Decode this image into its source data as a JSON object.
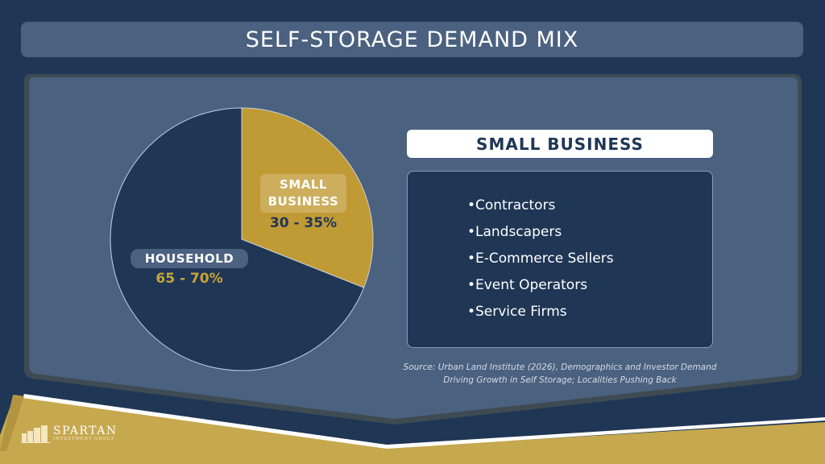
{
  "title": "SELF-STORAGE DEMAND MIX",
  "colors": {
    "navy": "#1f3655",
    "panel": "#4b6180",
    "gold": "#c09a35",
    "gold_band": "#c6a84e"
  },
  "chart_data": {
    "type": "pie",
    "start": "12 o'clock, clockwise",
    "slices": [
      {
        "name": "SMALL BUSINESS",
        "label": "30 - 35%",
        "value": 31,
        "color": "#c09a35"
      },
      {
        "name": "HOUSEHOLD",
        "label": "65 - 70%",
        "value": 69,
        "color": "#1f3655"
      }
    ]
  },
  "detail": {
    "heading": "SMALL BUSINESS",
    "items": [
      "Contractors",
      "Landscapers",
      "E-Commerce Sellers",
      "Event Operators",
      "Service Firms"
    ],
    "bullet": "•"
  },
  "source": {
    "line1": "Source: Urban Land Institute (2026), Demographics and Investor Demand",
    "line2": "Driving Growth in Self Storage; Localities Pushing Back"
  },
  "logo": {
    "name": "SPARTAN",
    "subtitle": "INVESTMENT GROUP"
  }
}
